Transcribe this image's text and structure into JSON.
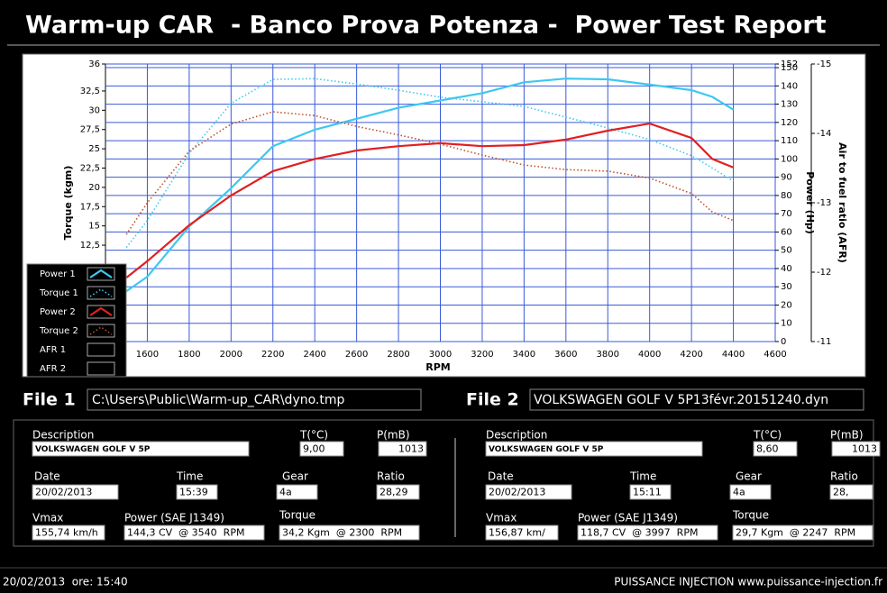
{
  "header": {
    "title": "Warm-up CAR  - Banco Prova Potenza -  Power Test Report"
  },
  "chart_data": {
    "type": "line",
    "x_label": "RPM",
    "y_label": "Torque (kgm)",
    "y2_label": "Power (Hp)",
    "y3_label": "Air to fuel ratio (AFR)",
    "x": [
      1500,
      1600,
      1800,
      2000,
      2200,
      2400,
      2600,
      2800,
      3000,
      3200,
      3400,
      3600,
      3800,
      4000,
      4200,
      4300,
      4400
    ],
    "xlim": [
      1400,
      4600
    ],
    "xticks": [
      1600,
      1800,
      2000,
      2200,
      2400,
      2600,
      2800,
      3000,
      3200,
      3400,
      3600,
      3800,
      4000,
      4200,
      4400,
      4600
    ],
    "ylim": [
      0,
      36
    ],
    "yticks": [
      {
        "value": 12.5,
        "label": "12,5"
      },
      15,
      {
        "value": 17.5,
        "label": "17,5"
      },
      20,
      {
        "value": 22.5,
        "label": "22,5"
      },
      25,
      {
        "value": 27.5,
        "label": "27,5"
      },
      30,
      {
        "value": 32.5,
        "label": "32,5"
      },
      36
    ],
    "y2lim": [
      0,
      152
    ],
    "y2ticks": [
      0,
      10,
      20,
      30,
      40,
      50,
      60,
      70,
      80,
      90,
      100,
      110,
      120,
      130,
      140,
      150,
      152
    ],
    "y3lim": [
      -11,
      -15
    ],
    "y3ticks": [
      -15,
      -14,
      -13,
      -12,
      -11
    ],
    "grid": true,
    "legend": "lower left",
    "series": [
      {
        "name": "Power 1",
        "color": "#3ec8f0",
        "style": "solid",
        "axis": "y2",
        "values": [
          27.6,
          35.5,
          63,
          84,
          107,
          116,
          122,
          128,
          132,
          136,
          142,
          144,
          143.6,
          140.7,
          137.7,
          134,
          127
        ]
      },
      {
        "name": "Torque 1",
        "color": "#3ec8f0",
        "style": "dotted",
        "values": [
          12.2,
          15.7,
          24.4,
          30.9,
          34,
          34.1,
          33.4,
          32.6,
          31.7,
          31.1,
          30.5,
          29.1,
          27.7,
          26.2,
          24.1,
          22.5,
          20.8
        ]
      },
      {
        "name": "Power 2",
        "color": "#e02020",
        "style": "solid",
        "axis": "y2",
        "values": [
          35,
          44,
          63.7,
          80,
          93.3,
          100,
          104.6,
          107,
          108.6,
          107,
          107.6,
          110.6,
          115.5,
          119.4,
          111.5,
          100,
          95.3
        ]
      },
      {
        "name": "Torque 2",
        "color": "#c0502a",
        "style": "dotted",
        "values": [
          13.9,
          18,
          24.7,
          28.2,
          29.8,
          29.3,
          27.9,
          26.8,
          25.6,
          24.2,
          22.9,
          22.3,
          22.1,
          21.2,
          19.2,
          16.8,
          15.7
        ]
      }
    ],
    "afr_series": [
      {
        "name": "AFR 1"
      },
      {
        "name": "AFR 2"
      }
    ]
  },
  "files": [
    {
      "label": "File 1",
      "path": "C:\\Users\\Public\\Warm-up_CAR\\dyno.tmp"
    },
    {
      "label": "File 2",
      "path": "VOLKSWAGEN GOLF V 5P13févr.20151240.dyn"
    }
  ],
  "panels": [
    {
      "fields": [
        {
          "label": "Description",
          "value": "VOLKSWAGEN GOLF V 5P"
        },
        {
          "label": "T(°C)",
          "value": "9,00"
        },
        {
          "label": "P(mB)",
          "value": "1013"
        },
        {
          "label": "Date",
          "value": "20/02/2013"
        },
        {
          "label": "Time",
          "value": "15:39"
        },
        {
          "label": "Gear",
          "value": "4a"
        },
        {
          "label": "Ratio",
          "value": "28,29"
        },
        {
          "label": "Vmax",
          "value": "155,74 km/h"
        },
        {
          "label": "Power (SAE J1349)",
          "value": "144,3 CV  @ 3540  RPM"
        },
        {
          "label": "Torque",
          "value": "34,2 Kgm  @ 2300  RPM"
        }
      ]
    },
    {
      "fields": [
        {
          "label": "Description",
          "value": "VOLKSWAGEN GOLF V 5P"
        },
        {
          "label": "T(°C)",
          "value": "8,60"
        },
        {
          "label": "P(mB)",
          "value": "1013"
        },
        {
          "label": "Date",
          "value": "20/02/2013"
        },
        {
          "label": "Time",
          "value": "15:11"
        },
        {
          "label": "Gear",
          "value": "4a"
        },
        {
          "label": "Ratio",
          "value": "28,"
        },
        {
          "label": "Vmax",
          "value": "156,87 km/"
        },
        {
          "label": "Power (SAE J1349)",
          "value": "118,7 CV  @ 3997  RPM"
        },
        {
          "label": "Torque",
          "value": "29,7 Kgm  @ 2247  RPM"
        }
      ]
    }
  ],
  "footer": {
    "left": "20/02/2013  ore: 15:40",
    "right": "PUISSANCE INJECTION www.puissance-injection.fr"
  }
}
